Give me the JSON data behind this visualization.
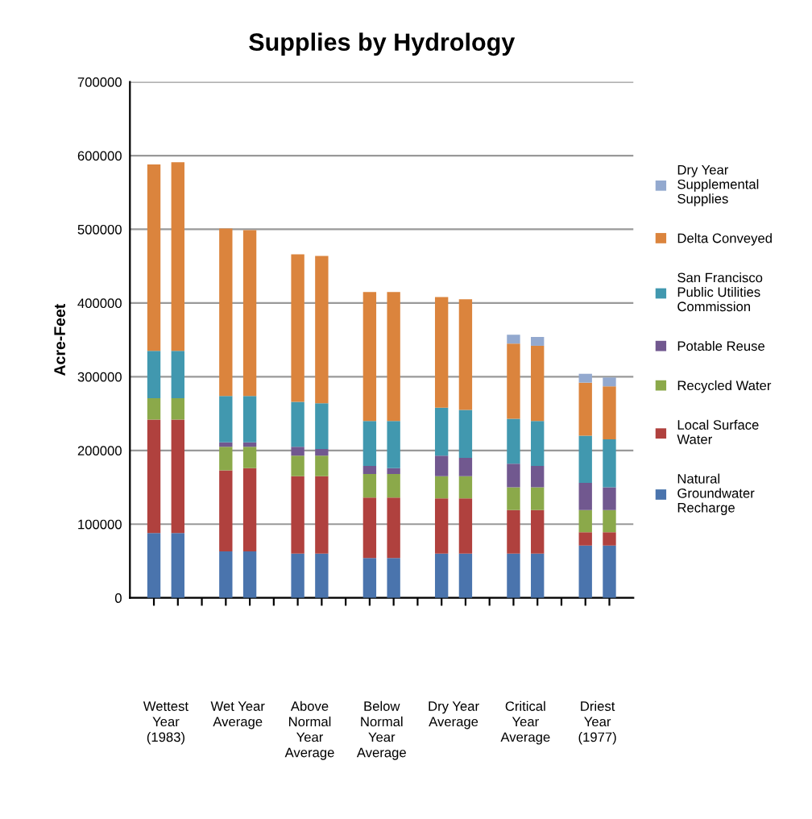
{
  "chart_data": {
    "type": "bar",
    "stacked": true,
    "title": "Supplies by Hydrology",
    "ylabel": "Acre-Feet",
    "categories": [
      null,
      null,
      null,
      null,
      null,
      null,
      null,
      null,
      null,
      null,
      null,
      null,
      null,
      null,
      null,
      null,
      null,
      null,
      null,
      null
    ],
    "series": [
      {
        "name": "Natural\nGroundwater\nRecharge",
        "color": "#4a74ad",
        "values": [
          88000,
          88000,
          null,
          63000,
          63000,
          null,
          60000,
          60000,
          null,
          54000,
          54000,
          null,
          60000,
          60000,
          null,
          60000,
          60000,
          null,
          71000,
          71000
        ]
      },
      {
        "name": "Local Surface\nWater",
        "color": "#b0413e",
        "values": [
          154000,
          154000,
          null,
          110000,
          113000,
          null,
          105000,
          105000,
          null,
          82000,
          82000,
          null,
          75000,
          75000,
          null,
          59000,
          59000,
          null,
          18000,
          18000
        ]
      },
      {
        "name": "Recycled Water",
        "color": "#8ba94a",
        "values": [
          29000,
          29000,
          null,
          32000,
          29000,
          null,
          28000,
          28000,
          null,
          32000,
          32000,
          null,
          30000,
          30000,
          null,
          31000,
          31000,
          null,
          30000,
          30000
        ]
      },
      {
        "name": "Potable Reuse",
        "color": "#71588f",
        "values": [
          0,
          0,
          null,
          6000,
          6000,
          null,
          12000,
          9000,
          null,
          11000,
          8000,
          null,
          28000,
          25000,
          null,
          32000,
          29000,
          null,
          37000,
          31000
        ]
      },
      {
        "name": "San Francisco\nPublic Utilities\nCommission",
        "color": "#4198af",
        "values": [
          64000,
          64000,
          null,
          63000,
          63000,
          null,
          61000,
          62000,
          null,
          61000,
          64000,
          null,
          65000,
          65000,
          null,
          61000,
          61000,
          null,
          64000,
          65000
        ]
      },
      {
        "name": "Delta Conveyed",
        "color": "#db843d",
        "values": [
          253000,
          256000,
          null,
          227000,
          225000,
          null,
          200000,
          200000,
          null,
          175000,
          175000,
          null,
          150000,
          150000,
          null,
          102000,
          102000,
          null,
          72000,
          72000
        ]
      },
      {
        "name": "Dry Year\nSupplemental\nSupplies",
        "color": "#93a9cf",
        "values": [
          0,
          0,
          null,
          0,
          0,
          null,
          0,
          0,
          null,
          0,
          0,
          null,
          0,
          0,
          null,
          12000,
          12000,
          null,
          12000,
          12000
        ]
      }
    ],
    "annotations": [
      "Wettest\nYear\n(1983)",
      "Wet Year\nAverage",
      "Above\nNormal\nYear\nAverage",
      "Below\nNormal\nYear\nAverage",
      "Dry Year\nAverage",
      "Critical\nYear\nAverage",
      "Driest\nYear\n(1977)"
    ],
    "ylim": [
      0,
      700000
    ],
    "yticks": [
      0,
      100000,
      200000,
      300000,
      400000,
      500000,
      600000,
      700000
    ],
    "grid": "y",
    "legend": "right"
  }
}
